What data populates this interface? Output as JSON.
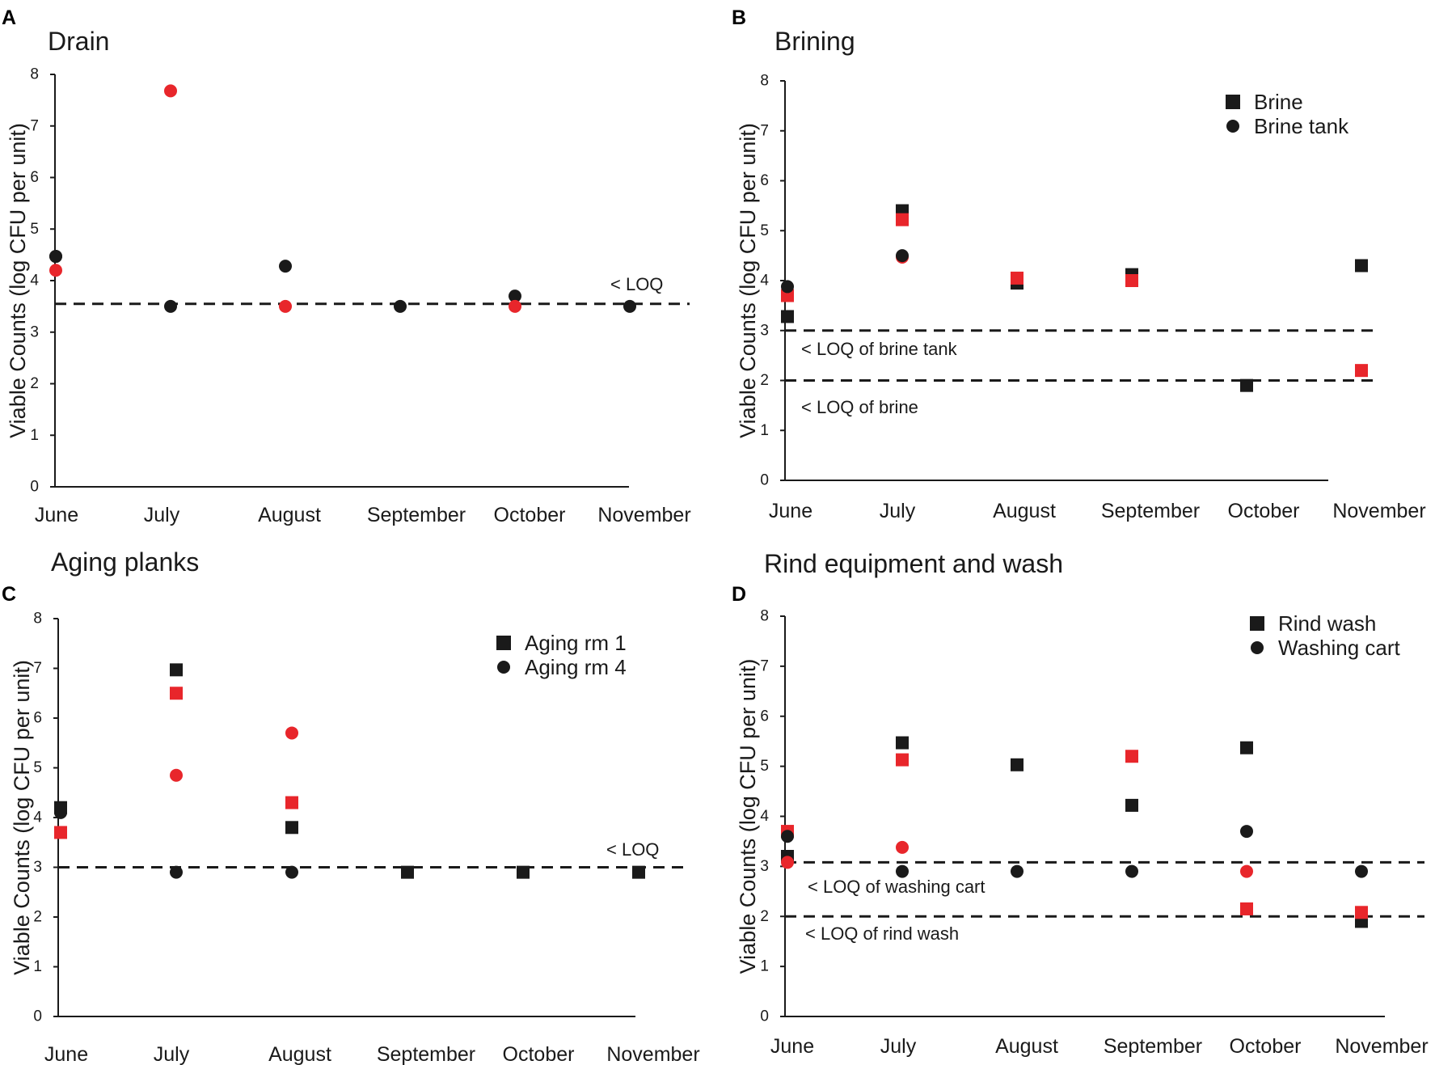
{
  "colors": {
    "black": "#1a1a1a",
    "red": "#e8262b"
  },
  "chart_data": [
    {
      "panel": "A",
      "type": "scatter",
      "title": "Drain",
      "ylabel": "Viable Counts (log CFU per unit)",
      "categories": [
        "June",
        "July",
        "August",
        "September",
        "October",
        "November"
      ],
      "ylim": [
        0,
        8
      ],
      "yticks": [
        "0",
        "1",
        "2",
        "3",
        "4",
        "5",
        "6",
        "7",
        "8"
      ],
      "legend": [],
      "loq_lines": [
        {
          "value": 3.55,
          "label": "< LOQ"
        }
      ],
      "series": [
        {
          "name": "black circles",
          "marker": "circle",
          "color": "black",
          "points": [
            {
              "x": 0,
              "y": 4.47
            },
            {
              "x": 0,
              "y": 4.47
            },
            {
              "x": 1,
              "y": 3.5
            },
            {
              "x": 2,
              "y": 4.28
            },
            {
              "x": 3,
              "y": 3.5
            },
            {
              "x": 4,
              "y": 3.7
            },
            {
              "x": 5,
              "y": 3.5
            }
          ]
        },
        {
          "name": "red circles",
          "marker": "circle",
          "color": "red",
          "points": [
            {
              "x": 0,
              "y": 4.2
            },
            {
              "x": 1,
              "y": 7.68
            },
            {
              "x": 2,
              "y": 3.5
            },
            {
              "x": 4,
              "y": 3.5
            }
          ]
        }
      ]
    },
    {
      "panel": "B",
      "type": "scatter",
      "title": "Brining",
      "ylabel": "Viable Counts (log CFU per unit)",
      "categories": [
        "June",
        "July",
        "August",
        "September",
        "October",
        "November"
      ],
      "ylim": [
        0,
        8
      ],
      "yticks": [
        "0",
        "1",
        "2",
        "3",
        "4",
        "5",
        "6",
        "7",
        "8"
      ],
      "legend": [
        {
          "label": "Brine",
          "marker": "square"
        },
        {
          "label": "Brine tank",
          "marker": "circle"
        }
      ],
      "loq_lines": [
        {
          "value": 3.0,
          "label": "< LOQ of brine tank"
        },
        {
          "value": 2.0,
          "label": "< LOQ of brine"
        }
      ],
      "series": [
        {
          "name": "Brine",
          "marker": "square",
          "color": "black",
          "points": [
            {
              "x": 0,
              "y": 3.28
            },
            {
              "x": 1,
              "y": 5.4
            },
            {
              "x": 2,
              "y": 3.95
            },
            {
              "x": 3,
              "y": 4.12
            },
            {
              "x": 4,
              "y": 1.9
            },
            {
              "x": 5,
              "y": 4.3
            }
          ]
        },
        {
          "name": "Brine (red)",
          "marker": "square",
          "color": "red",
          "points": [
            {
              "x": 0,
              "y": 3.7
            },
            {
              "x": 1,
              "y": 5.22
            },
            {
              "x": 2,
              "y": 4.05
            },
            {
              "x": 3,
              "y": 4.0
            },
            {
              "x": 5,
              "y": 2.2
            }
          ]
        },
        {
          "name": "Brine tank (red)",
          "marker": "circle",
          "color": "red",
          "points": [
            {
              "x": 1,
              "y": 4.47
            }
          ]
        },
        {
          "name": "Brine tank",
          "marker": "circle",
          "color": "black",
          "points": [
            {
              "x": 0,
              "y": 3.88
            },
            {
              "x": 1,
              "y": 4.5
            }
          ]
        }
      ]
    },
    {
      "panel": "C",
      "type": "scatter",
      "title": "Aging planks",
      "ylabel": "Viable Counts (log CFU per unit)",
      "categories": [
        "June",
        "July",
        "August",
        "September",
        "October",
        "November"
      ],
      "ylim": [
        0,
        8
      ],
      "yticks": [
        "0",
        "1",
        "2",
        "3",
        "4",
        "5",
        "6",
        "7",
        "8"
      ],
      "legend": [
        {
          "label": "Aging rm 1",
          "marker": "square"
        },
        {
          "label": "Aging rm 4",
          "marker": "circle"
        }
      ],
      "loq_lines": [
        {
          "value": 3.0,
          "label": "< LOQ"
        }
      ],
      "series": [
        {
          "name": "Aging rm 1",
          "marker": "square",
          "color": "black",
          "points": [
            {
              "x": 0,
              "y": 4.2
            },
            {
              "x": 1,
              "y": 6.97
            },
            {
              "x": 2,
              "y": 3.8
            },
            {
              "x": 3,
              "y": 2.9
            },
            {
              "x": 4,
              "y": 2.9
            },
            {
              "x": 5,
              "y": 2.9
            }
          ]
        },
        {
          "name": "Aging rm 1 (red)",
          "marker": "square",
          "color": "red",
          "points": [
            {
              "x": 0,
              "y": 3.7
            },
            {
              "x": 1,
              "y": 6.5
            },
            {
              "x": 2,
              "y": 4.3
            }
          ]
        },
        {
          "name": "Aging rm 4 (red)",
          "marker": "circle",
          "color": "red",
          "points": [
            {
              "x": 1,
              "y": 4.85
            },
            {
              "x": 2,
              "y": 5.7
            }
          ]
        },
        {
          "name": "Aging rm 4",
          "marker": "circle",
          "color": "black",
          "points": [
            {
              "x": 0,
              "y": 4.1
            },
            {
              "x": 1,
              "y": 2.9
            },
            {
              "x": 2,
              "y": 2.9
            }
          ]
        }
      ]
    },
    {
      "panel": "D",
      "type": "scatter",
      "title": "Rind equipment and wash",
      "ylabel": "Viable Counts (log CFU per unit)",
      "categories": [
        "June",
        "July",
        "August",
        "September",
        "October",
        "November"
      ],
      "ylim": [
        0,
        8
      ],
      "yticks": [
        "0",
        "1",
        "2",
        "3",
        "4",
        "5",
        "6",
        "7",
        "8"
      ],
      "legend": [
        {
          "label": "Rind wash",
          "marker": "square"
        },
        {
          "label": "Washing cart",
          "marker": "circle"
        }
      ],
      "loq_lines": [
        {
          "value": 3.08,
          "label": "< LOQ of washing cart"
        },
        {
          "value": 2.0,
          "label": "< LOQ of rind wash"
        }
      ],
      "series": [
        {
          "name": "Rind wash",
          "marker": "square",
          "color": "black",
          "points": [
            {
              "x": 0,
              "y": 3.2
            },
            {
              "x": 1,
              "y": 5.47
            },
            {
              "x": 2,
              "y": 5.03
            },
            {
              "x": 3,
              "y": 4.22
            },
            {
              "x": 4,
              "y": 5.37
            },
            {
              "x": 5,
              "y": 1.9
            }
          ]
        },
        {
          "name": "Rind wash (red)",
          "marker": "square",
          "color": "red",
          "points": [
            {
              "x": 0,
              "y": 3.7
            },
            {
              "x": 1,
              "y": 5.13
            },
            {
              "x": 3,
              "y": 5.2
            },
            {
              "x": 4,
              "y": 2.15
            },
            {
              "x": 5,
              "y": 2.08
            }
          ]
        },
        {
          "name": "Washing cart",
          "marker": "circle",
          "color": "black",
          "points": [
            {
              "x": 0,
              "y": 3.6
            },
            {
              "x": 1,
              "y": 2.9
            },
            {
              "x": 2,
              "y": 2.9
            },
            {
              "x": 3,
              "y": 2.9
            },
            {
              "x": 4,
              "y": 3.7
            },
            {
              "x": 5,
              "y": 2.9
            }
          ]
        },
        {
          "name": "Washing cart (red)",
          "marker": "circle",
          "color": "red",
          "points": [
            {
              "x": 0,
              "y": 3.08
            },
            {
              "x": 1,
              "y": 3.38
            },
            {
              "x": 4,
              "y": 2.9
            }
          ]
        }
      ]
    }
  ]
}
